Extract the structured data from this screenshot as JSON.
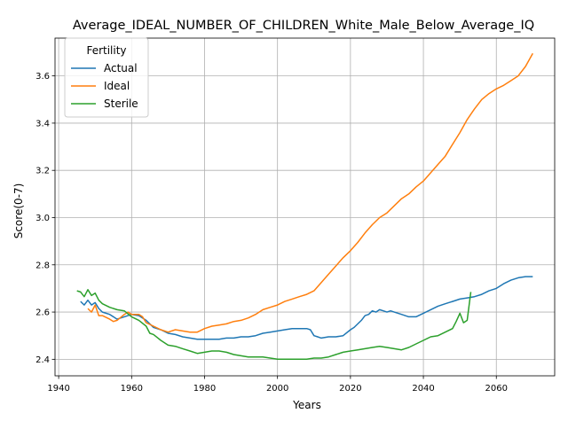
{
  "chart_data": {
    "type": "line",
    "title": "Average_IDEAL_NUMBER_OF_CHILDREN_White_Male_Below_Average_IQ",
    "xlabel": "Years",
    "ylabel": "Score(0-7)",
    "xlim": [
      1939,
      2076
    ],
    "ylim": [
      2.33,
      3.76
    ],
    "xticks": [
      1940,
      1960,
      1980,
      2000,
      2020,
      2040,
      2060
    ],
    "yticks": [
      2.4,
      2.6,
      2.8,
      3.0,
      3.2,
      3.4,
      3.6
    ],
    "xtick_labels": [
      "1940",
      "1960",
      "1980",
      "2000",
      "2020",
      "2040",
      "2060"
    ],
    "ytick_labels": [
      "2.4",
      "2.6",
      "2.8",
      "3.0",
      "3.2",
      "3.4",
      "3.6"
    ],
    "grid": true,
    "legend": {
      "title": "Fertility",
      "placement": "top-left"
    },
    "series": [
      {
        "name": "Actual",
        "color": "#1f77b4",
        "x": [
          1946,
          1947,
          1948,
          1949,
          1950,
          1951,
          1952,
          1954,
          1956,
          1958,
          1960,
          1962,
          1964,
          1966,
          1968,
          1970,
          1972,
          1974,
          1976,
          1978,
          1980,
          1982,
          1984,
          1986,
          1988,
          1990,
          1992,
          1994,
          1996,
          1998,
          2000,
          2002,
          2004,
          2006,
          2008,
          2009,
          2010,
          2011,
          2012,
          2014,
          2016,
          2018,
          2020,
          2021,
          2022,
          2023,
          2024,
          2025,
          2026,
          2027,
          2028,
          2029,
          2030,
          2031,
          2032,
          2034,
          2036,
          2038,
          2040,
          2042,
          2044,
          2046,
          2048,
          2050,
          2052,
          2054,
          2056,
          2058,
          2060,
          2062,
          2064,
          2066,
          2068,
          2070
        ],
        "y": [
          2.645,
          2.63,
          2.65,
          2.63,
          2.64,
          2.615,
          2.6,
          2.59,
          2.57,
          2.58,
          2.59,
          2.585,
          2.565,
          2.535,
          2.525,
          2.51,
          2.505,
          2.495,
          2.49,
          2.485,
          2.485,
          2.485,
          2.485,
          2.49,
          2.49,
          2.495,
          2.495,
          2.5,
          2.51,
          2.515,
          2.52,
          2.525,
          2.53,
          2.53,
          2.53,
          2.525,
          2.5,
          2.495,
          2.49,
          2.495,
          2.495,
          2.5,
          2.525,
          2.535,
          2.55,
          2.565,
          2.585,
          2.59,
          2.605,
          2.6,
          2.61,
          2.605,
          2.6,
          2.605,
          2.6,
          2.59,
          2.58,
          2.58,
          2.595,
          2.61,
          2.625,
          2.635,
          2.645,
          2.655,
          2.66,
          2.665,
          2.675,
          2.69,
          2.7,
          2.72,
          2.735,
          2.745,
          2.75,
          2.75
        ]
      },
      {
        "name": "Ideal",
        "color": "#ff7f0e",
        "x": [
          1948,
          1949,
          1950,
          1951,
          1952,
          1954,
          1955,
          1956,
          1958,
          1959,
          1960,
          1962,
          1963,
          1964,
          1966,
          1968,
          1970,
          1972,
          1974,
          1976,
          1978,
          1980,
          1982,
          1984,
          1986,
          1988,
          1990,
          1992,
          1994,
          1996,
          1998,
          2000,
          2002,
          2004,
          2006,
          2008,
          2010,
          2012,
          2014,
          2016,
          2018,
          2020,
          2022,
          2024,
          2026,
          2028,
          2030,
          2032,
          2034,
          2036,
          2038,
          2040,
          2042,
          2044,
          2046,
          2048,
          2050,
          2052,
          2054,
          2056,
          2058,
          2060,
          2062,
          2064,
          2066,
          2068,
          2070
        ],
        "y": [
          2.615,
          2.6,
          2.63,
          2.585,
          2.585,
          2.57,
          2.56,
          2.565,
          2.59,
          2.6,
          2.59,
          2.59,
          2.58,
          2.555,
          2.54,
          2.525,
          2.515,
          2.525,
          2.52,
          2.515,
          2.515,
          2.53,
          2.54,
          2.545,
          2.55,
          2.56,
          2.565,
          2.575,
          2.59,
          2.61,
          2.62,
          2.63,
          2.645,
          2.655,
          2.665,
          2.675,
          2.69,
          2.725,
          2.76,
          2.795,
          2.83,
          2.86,
          2.895,
          2.935,
          2.97,
          3.0,
          3.02,
          3.05,
          3.08,
          3.1,
          3.13,
          3.155,
          3.19,
          3.225,
          3.26,
          3.31,
          3.36,
          3.415,
          3.46,
          3.5,
          3.525,
          3.545,
          3.56,
          3.58,
          3.6,
          3.64,
          3.695
        ]
      },
      {
        "name": "Sterile",
        "color": "#2ca02c",
        "x": [
          1945,
          1946,
          1947,
          1948,
          1949,
          1950,
          1951,
          1952,
          1954,
          1956,
          1958,
          1960,
          1962,
          1964,
          1965,
          1966,
          1968,
          1970,
          1972,
          1974,
          1976,
          1978,
          1980,
          1982,
          1984,
          1986,
          1988,
          1990,
          1992,
          1994,
          1996,
          1998,
          2000,
          2002,
          2004,
          2006,
          2008,
          2010,
          2012,
          2014,
          2016,
          2018,
          2020,
          2022,
          2024,
          2026,
          2028,
          2030,
          2032,
          2034,
          2036,
          2038,
          2040,
          2042,
          2044,
          2046,
          2048,
          2049,
          2050,
          2051,
          2052,
          2053
        ],
        "y": [
          2.69,
          2.685,
          2.665,
          2.695,
          2.67,
          2.68,
          2.65,
          2.635,
          2.62,
          2.61,
          2.605,
          2.58,
          2.565,
          2.54,
          2.51,
          2.505,
          2.48,
          2.46,
          2.455,
          2.445,
          2.435,
          2.425,
          2.43,
          2.435,
          2.435,
          2.43,
          2.42,
          2.415,
          2.41,
          2.41,
          2.41,
          2.405,
          2.4,
          2.4,
          2.4,
          2.4,
          2.4,
          2.405,
          2.405,
          2.41,
          2.42,
          2.43,
          2.435,
          2.44,
          2.445,
          2.45,
          2.455,
          2.45,
          2.445,
          2.44,
          2.45,
          2.465,
          2.48,
          2.495,
          2.5,
          2.515,
          2.53,
          2.56,
          2.595,
          2.555,
          2.565,
          2.685
        ]
      }
    ]
  }
}
